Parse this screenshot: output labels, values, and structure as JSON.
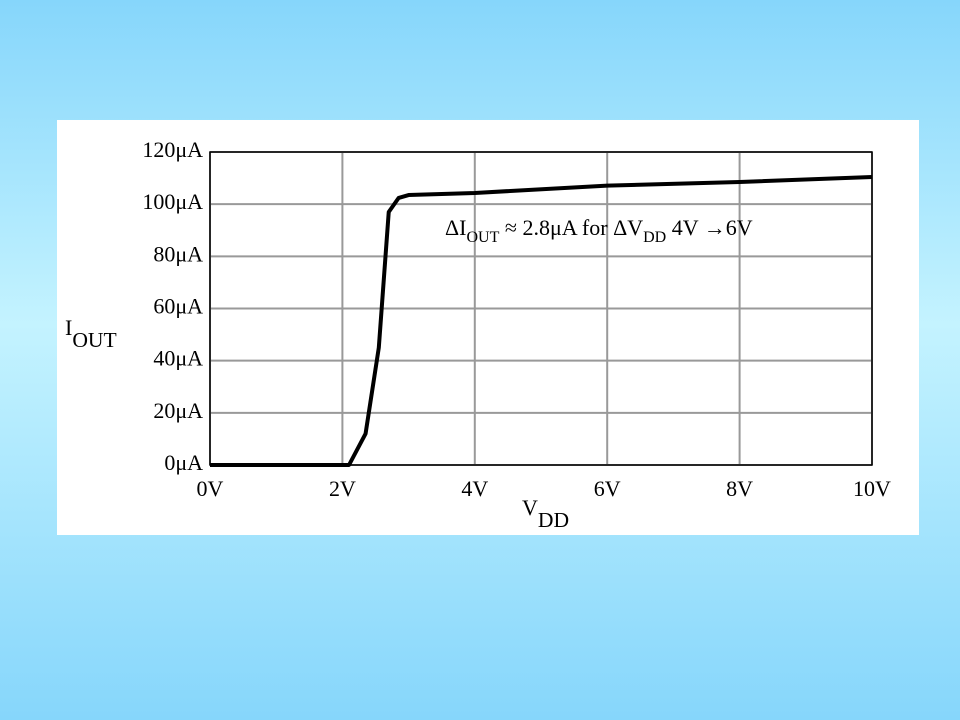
{
  "chart_data": {
    "type": "line",
    "x": [
      0,
      2.1,
      2.35,
      2.55,
      2.7,
      2.85,
      3,
      4,
      6,
      8,
      10
    ],
    "series": [
      {
        "color": "#000000",
        "values": [
          0,
          0,
          12,
          45,
          97,
          102.4,
          103.5,
          104.3,
          107.1,
          108.5,
          110.4
        ]
      }
    ],
    "xlim": [
      0,
      10
    ],
    "ylim": [
      0,
      120
    ],
    "xticks": [
      {
        "value": 0,
        "label": "0V"
      },
      {
        "value": 2,
        "label": "2V"
      },
      {
        "value": 4,
        "label": "4V"
      },
      {
        "value": 6,
        "label": "6V"
      },
      {
        "value": 8,
        "label": "8V"
      },
      {
        "value": 10,
        "label": "10V"
      }
    ],
    "yticks": [
      {
        "value": 0,
        "label": "0μA"
      },
      {
        "value": 20,
        "label": "20μA"
      },
      {
        "value": 40,
        "label": "40μA"
      },
      {
        "value": 60,
        "label": "60μA"
      },
      {
        "value": 80,
        "label": "80μA"
      },
      {
        "value": 100,
        "label": "100μA"
      },
      {
        "value": 120,
        "label": "120μA"
      }
    ],
    "grid": true,
    "x_label": {
      "text": "V",
      "sub": "DD"
    },
    "y_label": {
      "text": "I",
      "sub": "OUT"
    },
    "annotation": [
      {
        "text": "ΔI"
      },
      {
        "text": "OUT",
        "sub": true
      },
      {
        "text": " ≈ 2.8μA for ΔV"
      },
      {
        "text": "DD",
        "sub": true
      },
      {
        "text": " 4V →6V"
      }
    ]
  }
}
